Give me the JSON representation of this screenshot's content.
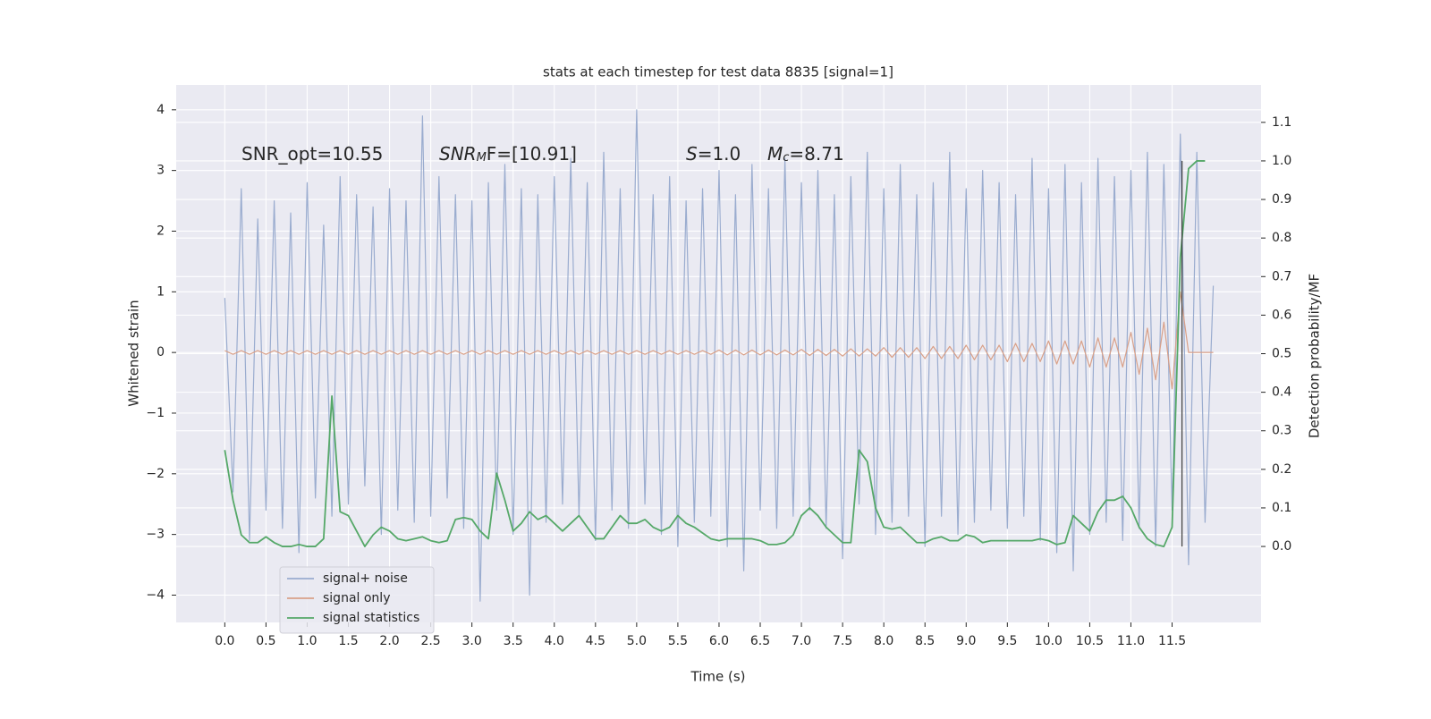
{
  "chart_data": {
    "type": "line",
    "title": "stats at each timestep for test data 8835 [signal=1]",
    "xlabel": "Time (s)",
    "ylabel": "Whitened strain",
    "y2label": "Detection probability/MF",
    "grid": true,
    "legend": "lower left",
    "xlim": [
      -0.59,
      12.58
    ],
    "ylim": [
      -4.45,
      4.41
    ],
    "y2lim": [
      -0.197,
      1.197
    ],
    "xticks": [
      {
        "value": 0,
        "label": "0.0"
      },
      {
        "value": 0.5,
        "label": "0.5"
      },
      {
        "value": 1,
        "label": "1.0"
      },
      {
        "value": 1.5,
        "label": "1.5"
      },
      {
        "value": 2,
        "label": "2.0"
      },
      {
        "value": 2.5,
        "label": "2.5"
      },
      {
        "value": 3,
        "label": "3.0"
      },
      {
        "value": 3.5,
        "label": "3.5"
      },
      {
        "value": 4,
        "label": "4.0"
      },
      {
        "value": 4.5,
        "label": "4.5"
      },
      {
        "value": 5,
        "label": "5.0"
      },
      {
        "value": 5.5,
        "label": "5.5"
      },
      {
        "value": 6,
        "label": "6.0"
      },
      {
        "value": 6.5,
        "label": "6.5"
      },
      {
        "value": 7,
        "label": "7.0"
      },
      {
        "value": 7.5,
        "label": "7.5"
      },
      {
        "value": 8,
        "label": "8.0"
      },
      {
        "value": 8.5,
        "label": "8.5"
      },
      {
        "value": 9,
        "label": "9.0"
      },
      {
        "value": 9.5,
        "label": "9.5"
      },
      {
        "value": 10,
        "label": "10.0"
      },
      {
        "value": 10.5,
        "label": "10.5"
      },
      {
        "value": 11,
        "label": "11.0"
      },
      {
        "value": 11.5,
        "label": "11.5"
      }
    ],
    "yticks": [
      {
        "value": -4,
        "label": "−4"
      },
      {
        "value": -3,
        "label": "−3"
      },
      {
        "value": -2,
        "label": "−2"
      },
      {
        "value": -1,
        "label": "−1"
      },
      0,
      1,
      2,
      3,
      4
    ],
    "y2ticks": [
      {
        "value": 0,
        "label": "0.0"
      },
      {
        "value": 0.1,
        "label": "0.1"
      },
      {
        "value": 0.2,
        "label": "0.2"
      },
      {
        "value": 0.3,
        "label": "0.3"
      },
      {
        "value": 0.4,
        "label": "0.4"
      },
      {
        "value": 0.5,
        "label": "0.5"
      },
      {
        "value": 0.6,
        "label": "0.6"
      },
      {
        "value": 0.7,
        "label": "0.7"
      },
      {
        "value": 0.8,
        "label": "0.8"
      },
      {
        "value": 0.9,
        "label": "0.9"
      },
      {
        "value": 1,
        "label": "1.0"
      },
      {
        "value": 1.1,
        "label": "1.1"
      }
    ],
    "x": [
      0,
      0.1,
      0.2,
      0.3,
      0.4,
      0.5,
      0.6,
      0.7,
      0.8,
      0.9,
      1,
      1.1,
      1.2,
      1.3,
      1.4,
      1.5,
      1.6,
      1.7,
      1.8,
      1.9,
      2,
      2.1,
      2.2,
      2.3,
      2.4,
      2.5,
      2.6,
      2.7,
      2.8,
      2.9,
      3,
      3.1,
      3.2,
      3.3,
      3.4,
      3.5,
      3.6,
      3.7,
      3.8,
      3.9,
      4,
      4.1,
      4.2,
      4.3,
      4.4,
      4.5,
      4.6,
      4.7,
      4.8,
      4.9,
      5,
      5.1,
      5.2,
      5.3,
      5.4,
      5.5,
      5.6,
      5.7,
      5.8,
      5.9,
      6,
      6.1,
      6.2,
      6.3,
      6.4,
      6.5,
      6.6,
      6.7,
      6.8,
      6.9,
      7,
      7.1,
      7.2,
      7.3,
      7.4,
      7.5,
      7.6,
      7.7,
      7.8,
      7.9,
      8,
      8.1,
      8.2,
      8.3,
      8.4,
      8.5,
      8.6,
      8.7,
      8.8,
      8.9,
      9,
      9.1,
      9.2,
      9.3,
      9.4,
      9.5,
      9.6,
      9.7,
      9.8,
      9.9,
      10,
      10.1,
      10.2,
      10.3,
      10.4,
      10.5,
      10.6,
      10.7,
      10.8,
      10.9,
      11,
      11.1,
      11.2,
      11.3,
      11.4,
      11.5,
      11.6,
      11.7,
      11.8,
      11.9,
      12
    ],
    "series": [
      {
        "name": "signal+ noise",
        "color": "#9aaccf",
        "values": [
          0.9,
          -2.3,
          2.7,
          -3.1,
          2.2,
          -2.6,
          2.5,
          -2.9,
          2.3,
          -3.3,
          2.8,
          -2.4,
          2.1,
          -2.7,
          2.9,
          -2.5,
          2.6,
          -2.2,
          2.4,
          -3.0,
          2.7,
          -2.6,
          2.5,
          -2.8,
          3.9,
          -2.7,
          2.9,
          -2.4,
          2.6,
          -2.9,
          2.5,
          -4.1,
          2.8,
          -2.6,
          3.1,
          -3.0,
          2.7,
          -4.0,
          2.6,
          -2.8,
          2.9,
          -2.5,
          3.2,
          -2.7,
          2.8,
          -3.1,
          3.3,
          -2.6,
          2.7,
          -2.9,
          4.0,
          -2.5,
          2.6,
          -3.0,
          2.9,
          -3.2,
          2.5,
          -2.8,
          2.7,
          -2.7,
          3.0,
          -3.2,
          2.6,
          -3.6,
          3.1,
          -2.6,
          2.7,
          -2.9,
          3.2,
          -2.7,
          2.8,
          -2.6,
          3.0,
          -2.9,
          2.6,
          -3.4,
          2.9,
          -2.5,
          3.3,
          -3.0,
          2.7,
          -2.8,
          3.1,
          -2.7,
          2.6,
          -3.2,
          2.8,
          -2.7,
          3.3,
          -3.0,
          2.7,
          -2.8,
          3.0,
          -2.6,
          2.8,
          -2.9,
          2.6,
          -2.7,
          3.2,
          -3.1,
          2.7,
          -3.3,
          3.1,
          -3.6,
          2.8,
          -3.0,
          3.2,
          -2.8,
          2.9,
          -3.1,
          3.0,
          -2.9,
          3.3,
          -3.2,
          3.1,
          -2.6,
          3.6,
          -3.5,
          3.3,
          -2.8,
          1.1
        ]
      },
      {
        "name": "signal only",
        "color": "#d9a088",
        "values": [
          0.03,
          -0.03,
          0.03,
          -0.03,
          0.03,
          -0.03,
          0.03,
          -0.03,
          0.03,
          -0.03,
          0.03,
          -0.03,
          0.03,
          -0.03,
          0.03,
          -0.03,
          0.03,
          -0.03,
          0.03,
          -0.03,
          0.03,
          -0.03,
          0.03,
          -0.03,
          0.03,
          -0.03,
          0.03,
          -0.03,
          0.03,
          -0.03,
          0.03,
          -0.03,
          0.03,
          -0.03,
          0.03,
          -0.03,
          0.03,
          -0.03,
          0.03,
          -0.03,
          0.03,
          -0.03,
          0.03,
          -0.03,
          0.03,
          -0.03,
          0.03,
          -0.03,
          0.03,
          -0.03,
          0.03,
          -0.03,
          0.03,
          -0.03,
          0.03,
          -0.03,
          0.03,
          -0.03,
          0.03,
          -0.03,
          0.04,
          -0.04,
          0.04,
          -0.04,
          0.04,
          -0.04,
          0.04,
          -0.04,
          0.04,
          -0.04,
          0.05,
          -0.05,
          0.05,
          -0.05,
          0.05,
          -0.06,
          0.06,
          -0.06,
          0.06,
          -0.06,
          0.08,
          -0.08,
          0.08,
          -0.08,
          0.08,
          -0.1,
          0.1,
          -0.1,
          0.1,
          -0.1,
          0.12,
          -0.12,
          0.12,
          -0.12,
          0.12,
          -0.15,
          0.15,
          -0.15,
          0.15,
          -0.15,
          0.19,
          -0.19,
          0.19,
          -0.19,
          0.19,
          -0.24,
          0.24,
          -0.24,
          0.24,
          -0.24,
          0.33,
          -0.36,
          0.4,
          -0.45,
          0.5,
          -0.6,
          1.0,
          0,
          0,
          0,
          0
        ]
      },
      {
        "name": "signal statistics",
        "color": "#55a868",
        "axis": "y2",
        "values": [
          0.25,
          0.12,
          0.03,
          0.01,
          0.01,
          0.025,
          0.01,
          0.0,
          0.0,
          0.005,
          0.0,
          0.0,
          0.02,
          0.39,
          0.09,
          0.08,
          0.04,
          0.0,
          0.03,
          0.05,
          0.04,
          0.02,
          0.015,
          0.02,
          0.025,
          0.015,
          0.01,
          0.015,
          0.07,
          0.075,
          0.07,
          0.04,
          0.02,
          0.19,
          0.12,
          0.04,
          0.06,
          0.09,
          0.07,
          0.08,
          0.06,
          0.04,
          0.06,
          0.08,
          0.05,
          0.02,
          0.02,
          0.05,
          0.08,
          0.06,
          0.06,
          0.07,
          0.05,
          0.04,
          0.05,
          0.08,
          0.06,
          0.05,
          0.035,
          0.02,
          0.015,
          0.02,
          0.02,
          0.02,
          0.02,
          0.015,
          0.005,
          0.005,
          0.01,
          0.03,
          0.08,
          0.1,
          0.08,
          0.05,
          0.03,
          0.01,
          0.01,
          0.25,
          0.22,
          0.1,
          0.05,
          0.045,
          0.05,
          0.03,
          0.01,
          0.01,
          0.02,
          0.025,
          0.015,
          0.015,
          0.03,
          0.025,
          0.01,
          0.015,
          0.015,
          0.015,
          0.015,
          0.015,
          0.015,
          0.02,
          0.015,
          0.005,
          0.01,
          0.08,
          0.06,
          0.04,
          0.09,
          0.12,
          0.12,
          0.13,
          0.1,
          0.05,
          0.02,
          0.005,
          0.0,
          0.05,
          0.75,
          0.98,
          1.0,
          1.0,
          null
        ]
      }
    ],
    "markers": [
      {
        "x": 11.62,
        "y2": [
          0,
          1
        ],
        "color": "#444444"
      }
    ],
    "annotations": [
      [
        {
          "text": "SNR_opt=10.55"
        }
      ],
      [
        {
          "text": "SNR",
          "italic": true
        },
        {
          "text": "M",
          "italic": true,
          "sub": true
        },
        {
          "text": "F=[10.91]"
        }
      ],
      [
        {
          "text": "S",
          "italic": true
        },
        {
          "text": "=1.0"
        }
      ],
      [
        {
          "text": "M",
          "italic": true
        },
        {
          "text": "c",
          "italic": true,
          "sub": true
        },
        {
          "text": "=8.71"
        }
      ]
    ]
  }
}
